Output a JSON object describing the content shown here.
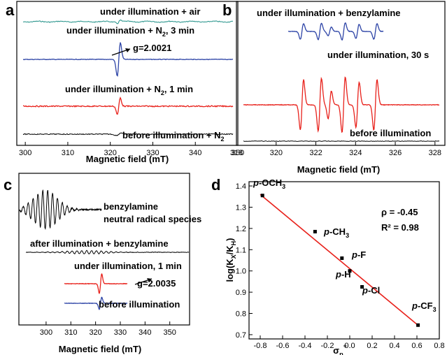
{
  "colors": {
    "black": "#000000",
    "red": "#e8211b",
    "blue": "#2c43a6",
    "teal": "#1e8f86"
  },
  "chart_data": [
    {
      "panel": "a",
      "type": "line",
      "xlabel": "Magnetic field (mT)",
      "xlim": [
        298,
        350
      ],
      "xticks": [
        300,
        310,
        320,
        330,
        340,
        350
      ],
      "series": [
        {
          "name": "under illumination + air",
          "color": "teal",
          "center": 322,
          "amplitude": 0.3
        },
        {
          "name": "under illumination + N2, 3 min",
          "color": "blue",
          "center": 322,
          "amplitude": 1.0
        },
        {
          "name": "under illumination + N2, 1 min",
          "color": "red",
          "center": 322,
          "amplitude": 0.6
        },
        {
          "name": "before illumination + N2",
          "color": "black",
          "center": 322,
          "amplitude": 0.08
        }
      ],
      "annotation": "g=2.0021"
    },
    {
      "panel": "b",
      "type": "line",
      "xlabel": "Magnetic field (mT)",
      "xlim": [
        318,
        328.5
      ],
      "xticks": [
        318,
        320,
        322,
        324,
        326,
        328
      ],
      "series": [
        {
          "name": "under illumination + benzylamine",
          "color": "blue",
          "amplitude": 0.45
        },
        {
          "name": "under illumination, 30 s",
          "color": "red",
          "amplitude": 1.0
        },
        {
          "name": "before illumination",
          "color": "black",
          "amplitude": 0.02
        }
      ]
    },
    {
      "panel": "c",
      "type": "line",
      "xlabel": "Magnetic field (mT)",
      "xlim": [
        289,
        358
      ],
      "xticks": [
        300,
        310,
        320,
        330,
        340,
        350
      ],
      "series": [
        {
          "name": "benzylamine neutral radical species",
          "color": "black"
        },
        {
          "name": "after illumination + benzylamine",
          "color": "black"
        },
        {
          "name": "under illumination, 1 min",
          "color": "red"
        },
        {
          "name": "before illumination",
          "color": "blue"
        }
      ],
      "annotation": "g=2.0035"
    },
    {
      "panel": "d",
      "type": "scatter",
      "xlabel": "σp+",
      "ylabel": "log(KX/KH)",
      "xlim": [
        -0.9,
        0.8
      ],
      "ylim": [
        0.68,
        1.42
      ],
      "xticks": [
        -0.8,
        -0.6,
        -0.4,
        -0.2,
        0.0,
        0.2,
        0.4,
        0.6,
        0.8
      ],
      "yticks": [
        0.7,
        0.8,
        0.9,
        1.0,
        1.1,
        1.2,
        1.3,
        1.4
      ],
      "points": [
        {
          "label": "p-OCH3",
          "x": -0.78,
          "y": 1.355
        },
        {
          "label": "p-CH3",
          "x": -0.31,
          "y": 1.185
        },
        {
          "label": "p-F",
          "x": -0.07,
          "y": 1.06
        },
        {
          "label": "p-H",
          "x": 0.0,
          "y": 1.0
        },
        {
          "label": "p-Cl",
          "x": 0.11,
          "y": 0.925
        },
        {
          "label": "p-CF3",
          "x": 0.61,
          "y": 0.745
        }
      ],
      "fit": {
        "x": [
          -0.8,
          0.62
        ],
        "y": [
          1.36,
          0.74
        ],
        "color": "red"
      },
      "stats": {
        "rho": "ρ = -0.45",
        "r2": "R² = 0.98"
      }
    }
  ],
  "panels": {
    "a": {
      "letter": "a",
      "labels": {
        "air": "under illumination + air",
        "n2_3": "under illumination + N",
        "n2_3_sub": "2",
        "n2_3_tail": ", 3 min",
        "g": "g=2.0021",
        "n2_1": "under illumination + N",
        "n2_1_sub": "2",
        "n2_1_tail": ", 1 min",
        "before": "before illumination + N",
        "before_sub": "2"
      },
      "xlabel": "Magnetic field (mT)",
      "ticks": [
        "300",
        "310",
        "320",
        "330",
        "340",
        "350"
      ]
    },
    "b": {
      "letter": "b",
      "labels": {
        "benz": "under illumination + benzylamine",
        "ill30": "under illumination, 30 s",
        "before": "before illumination"
      },
      "xlabel": "Magnetic field (mT)",
      "ticks": [
        "318",
        "320",
        "322",
        "324",
        "326",
        "328"
      ]
    },
    "c": {
      "letter": "c",
      "labels": {
        "benz1": "benzylamine",
        "benz2": "neutral radical species",
        "after": "after illumination + benzylamine",
        "ill1": "under illumination, 1 min",
        "g": "g=2.0035",
        "before": "before illumination"
      },
      "xlabel": "Magnetic field (mT)",
      "ticks": [
        "300",
        "310",
        "320",
        "330",
        "340",
        "350"
      ]
    },
    "d": {
      "letter": "d",
      "ylabel": "log(K",
      "ylabel_sub1": "X",
      "ylabel_mid": "/K",
      "ylabel_sub2": "H",
      "ylabel_end": ")",
      "xlabel": "σ",
      "xlabel_sub": "p",
      "xlabel_sup": "+",
      "xticks": [
        "-0.8",
        "-0.6",
        "-0.4",
        "-0.2",
        "0.0",
        "0.2",
        "0.4",
        "0.6",
        "0.8"
      ],
      "yticks": [
        "0.7",
        "0.8",
        "0.9",
        "1.0",
        "1.1",
        "1.2",
        "1.3",
        "1.4"
      ],
      "rho": "ρ = -0.45",
      "r2": "R² = 0.98",
      "pts": {
        "och3": {
          "a": "p",
          "b": "-OCH",
          "sub": "3"
        },
        "ch3": {
          "a": "p",
          "b": "-CH",
          "sub": "3"
        },
        "f": {
          "a": "p",
          "b": "-F"
        },
        "h": {
          "a": "p",
          "b": "-H"
        },
        "cl": {
          "a": "p",
          "b": "-Cl"
        },
        "cf3": {
          "a": "p",
          "b": "-CF",
          "sub": "3"
        }
      }
    }
  }
}
